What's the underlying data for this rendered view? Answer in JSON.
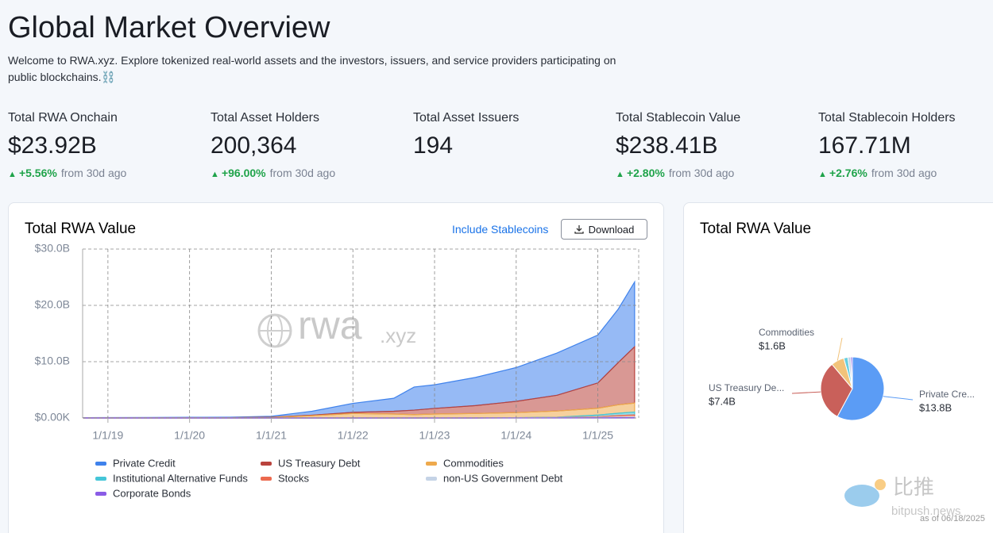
{
  "header": {
    "title": "Global Market Overview",
    "description": "Welcome to RWA.xyz. Explore tokenized real-world assets and the investors, issuers, and service providers participating on public blockchains.⛓️"
  },
  "stats": [
    {
      "label": "Total RWA Onchain",
      "value": "$23.92B",
      "change": "+5.56%",
      "note": "from 30d ago"
    },
    {
      "label": "Total Asset Holders",
      "value": "200,364",
      "change": "+96.00%",
      "note": "from 30d ago"
    },
    {
      "label": "Total Asset Issuers",
      "value": "194"
    },
    {
      "label": "Total Stablecoin Value",
      "value": "$238.41B",
      "change": "+2.80%",
      "note": "from 30d ago"
    },
    {
      "label": "Total Stablecoin Holders",
      "value": "167.71M",
      "change": "+2.76%",
      "note": "from 30d ago"
    }
  ],
  "controls": {
    "toggle": "Include Stablecoins",
    "download": "Download"
  },
  "watermark": {
    "brand": "rwa",
    "suffix": ".xyz",
    "source": "比推",
    "site": "bitpush.news",
    "date": "as of 06/18/2025"
  },
  "chart_data": [
    {
      "type": "stacked-area",
      "title": "Total RWA Value",
      "x": [
        2018.7,
        2019,
        2019.5,
        2020,
        2020.5,
        2021,
        2021.5,
        2022,
        2022.5,
        2022.75,
        2023,
        2023.5,
        2024,
        2024.5,
        2025,
        2025.25,
        2025.45
      ],
      "xlim": [
        2018.69,
        2025.5
      ],
      "xticks": [
        {
          "value": 2019,
          "label": "1/1/19"
        },
        {
          "value": 2020,
          "label": "1/1/20"
        },
        {
          "value": 2021,
          "label": "1/1/21"
        },
        {
          "value": 2022,
          "label": "1/1/22"
        },
        {
          "value": 2023,
          "label": "1/1/23"
        },
        {
          "value": 2024,
          "label": "1/1/24"
        },
        {
          "value": 2025,
          "label": "1/1/25"
        }
      ],
      "ylim": [
        0,
        30
      ],
      "yticks": [
        {
          "value": 0,
          "label": "$0.00K"
        },
        {
          "value": 10,
          "label": "$10.0B"
        },
        {
          "value": 20,
          "label": "$20.0B"
        },
        {
          "value": 30,
          "label": "$30.0B"
        }
      ],
      "grid": true,
      "series": [
        {
          "name": "Private Credit",
          "color": "#3f82ec",
          "values": [
            0.04,
            0.06,
            0.08,
            0.09,
            0.1,
            0.15,
            0.7,
            1.6,
            2.3,
            4.1,
            4.2,
            5.0,
            6.0,
            7.5,
            8.5,
            9.5,
            11.5
          ]
        },
        {
          "name": "US Treasury Debt",
          "color": "#b9433d",
          "values": [
            0,
            0,
            0,
            0,
            0,
            0.05,
            0.1,
            0.2,
            0.5,
            0.8,
            1.0,
            1.4,
            2.0,
            2.8,
            4.5,
            7.5,
            10
          ]
        },
        {
          "name": "Commodities",
          "color": "#eea94c",
          "values": [
            0.01,
            0.02,
            0.02,
            0.03,
            0.05,
            0.1,
            0.4,
            0.8,
            0.7,
            0.6,
            0.7,
            0.8,
            0.9,
            1.1,
            1.2,
            1.5,
            1.6
          ]
        },
        {
          "name": "Institutional Alternative Funds",
          "color": "#45c6d8",
          "values": [
            0,
            0,
            0,
            0,
            0,
            0,
            0,
            0,
            0,
            0,
            0,
            0,
            0.02,
            0.05,
            0.3,
            0.4,
            0.5
          ]
        },
        {
          "name": "Stocks",
          "color": "#ec6a4f",
          "values": [
            0,
            0,
            0,
            0,
            0,
            0,
            0,
            0,
            0,
            0,
            0,
            0,
            0.01,
            0.02,
            0.1,
            0.3,
            0.35
          ]
        },
        {
          "name": "non-US Government Debt",
          "color": "#c5d3e6",
          "values": [
            0,
            0,
            0,
            0,
            0,
            0,
            0,
            0,
            0,
            0,
            0,
            0,
            0.02,
            0.05,
            0.1,
            0.1,
            0.15
          ]
        },
        {
          "name": "Corporate Bonds",
          "color": "#8a5ce6",
          "values": [
            0,
            0,
            0,
            0,
            0,
            0,
            0,
            0,
            0,
            0,
            0,
            0,
            0.01,
            0.02,
            0.03,
            0.05,
            0.05
          ]
        }
      ]
    },
    {
      "type": "pie",
      "title": "Total RWA Value",
      "categories": [
        "Private Cre...",
        "US Treasury De...",
        "Commodities",
        null,
        null,
        null
      ],
      "values": [
        13.8,
        7.4,
        1.6,
        0.5,
        0.35,
        0.2
      ],
      "value_labels": [
        "$13.8B",
        "$7.4B",
        "$1.6B",
        null,
        null,
        null
      ],
      "colors": [
        "#5b9cf5",
        "#c9605a",
        "#f2c37a",
        "#67cfdf",
        "#c5d3e6",
        "#8a5ce6"
      ]
    }
  ]
}
